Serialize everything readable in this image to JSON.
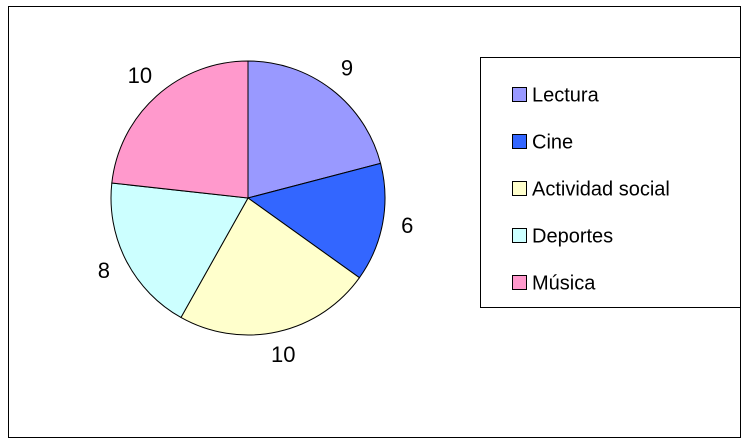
{
  "chart_data": {
    "type": "pie",
    "categories": [
      "Lectura",
      "Cine",
      "Actividad social",
      "Deportes",
      "Música"
    ],
    "values": [
      9,
      6,
      10,
      8,
      10
    ],
    "colors": [
      "#9999ff",
      "#3366ff",
      "#ffffcc",
      "#ccffff",
      "#ff99cc"
    ],
    "legend": "right"
  }
}
